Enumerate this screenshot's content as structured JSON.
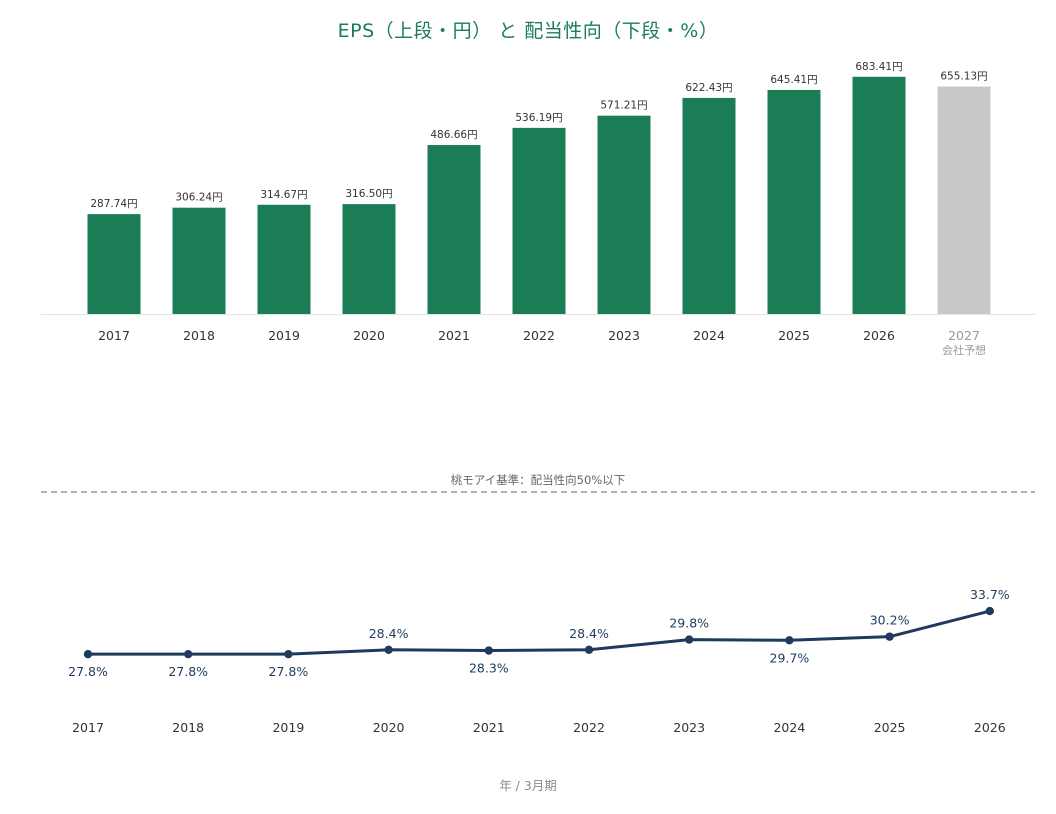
{
  "title": "EPS（上段・円） と 配当性向（下段・%）",
  "footer_label": "年 / 3月期",
  "colors": {
    "title": "#1b7d55",
    "eps_bar": "#1b7d55",
    "eps_forecast_bar": "#c8c8c8",
    "payout_line": "#1f3a5f",
    "reference_line": "#9a9a9a"
  },
  "chart_data": [
    {
      "type": "bar",
      "name": "EPS",
      "categories": [
        "2017",
        "2018",
        "2019",
        "2020",
        "2021",
        "2022",
        "2023",
        "2024",
        "2025",
        "2026",
        "2027"
      ],
      "values": [
        287.74,
        306.24,
        314.67,
        316.5,
        486.66,
        536.19,
        571.21,
        622.43,
        645.41,
        683.41,
        655.13
      ],
      "value_labels": [
        "287.74円",
        "306.24円",
        "314.67円",
        "316.50円",
        "486.66円",
        "536.19円",
        "571.21円",
        "622.43円",
        "645.41円",
        "683.41円",
        "655.13円"
      ],
      "forecast": [
        false,
        false,
        false,
        false,
        false,
        false,
        false,
        false,
        false,
        false,
        true
      ],
      "forecast_note": "会社予想",
      "ylim": [
        0,
        700
      ],
      "grid": false
    },
    {
      "type": "line",
      "name": "配当性向",
      "categories": [
        "2017",
        "2018",
        "2019",
        "2020",
        "2021",
        "2022",
        "2023",
        "2024",
        "2025",
        "2026"
      ],
      "values": [
        27.8,
        27.8,
        27.8,
        28.4,
        28.3,
        28.4,
        29.8,
        29.7,
        30.2,
        33.7
      ],
      "value_labels": [
        "27.8%",
        "27.8%",
        "27.8%",
        "28.4%",
        "28.3%",
        "28.4%",
        "29.8%",
        "29.7%",
        "30.2%",
        "33.7%"
      ],
      "label_positions": [
        "below",
        "below",
        "below",
        "above",
        "below",
        "above",
        "above",
        "below",
        "above",
        "above"
      ],
      "ylim": [
        14,
        50
      ],
      "reference_line": {
        "value": 50,
        "label": "桃モアイ基準：配当性向50%以下",
        "style": "dashed"
      },
      "grid": false
    }
  ]
}
